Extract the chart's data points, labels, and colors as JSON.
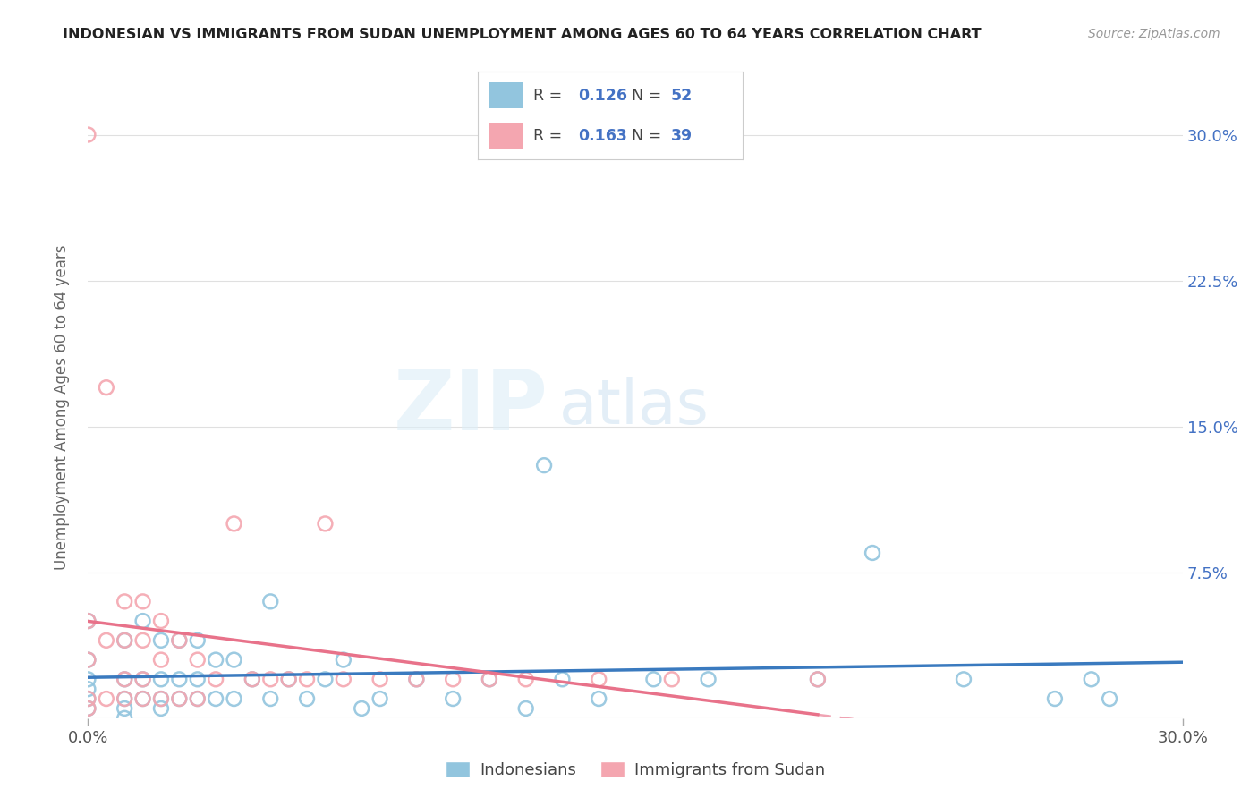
{
  "title": "INDONESIAN VS IMMIGRANTS FROM SUDAN UNEMPLOYMENT AMONG AGES 60 TO 64 YEARS CORRELATION CHART",
  "source": "Source: ZipAtlas.com",
  "ylabel": "Unemployment Among Ages 60 to 64 years",
  "xlim": [
    0.0,
    0.3
  ],
  "ylim": [
    0.0,
    0.32
  ],
  "yticks": [
    0.0,
    0.075,
    0.15,
    0.225,
    0.3
  ],
  "ytick_labels": [
    "",
    "7.5%",
    "15.0%",
    "22.5%",
    "30.0%"
  ],
  "xticks": [
    0.0,
    0.3
  ],
  "xtick_labels": [
    "0.0%",
    "30.0%"
  ],
  "blue_color": "#92c5de",
  "pink_color": "#f4a6b0",
  "blue_line_color": "#3a7abf",
  "pink_line_color": "#e8728a",
  "r_blue": 0.126,
  "n_blue": 52,
  "r_pink": 0.163,
  "n_pink": 39,
  "legend_label_blue": "Indonesians",
  "legend_label_pink": "Immigrants from Sudan",
  "watermark_zip": "ZIP",
  "watermark_atlas": "atlas",
  "background_color": "#ffffff",
  "grid_color": "#e0e0e0",
  "blue_scatter_x": [
    0.0,
    0.0,
    0.0,
    0.0,
    0.0,
    0.0,
    0.01,
    0.01,
    0.01,
    0.01,
    0.01,
    0.015,
    0.015,
    0.015,
    0.02,
    0.02,
    0.02,
    0.02,
    0.025,
    0.025,
    0.025,
    0.03,
    0.03,
    0.03,
    0.035,
    0.035,
    0.04,
    0.04,
    0.045,
    0.05,
    0.05,
    0.055,
    0.06,
    0.065,
    0.07,
    0.075,
    0.08,
    0.09,
    0.1,
    0.11,
    0.12,
    0.125,
    0.13,
    0.14,
    0.155,
    0.17,
    0.2,
    0.215,
    0.24,
    0.265,
    0.275,
    0.28
  ],
  "blue_scatter_y": [
    0.005,
    0.01,
    0.015,
    0.02,
    0.03,
    0.05,
    0.0,
    0.005,
    0.01,
    0.02,
    0.04,
    0.01,
    0.02,
    0.05,
    0.005,
    0.01,
    0.02,
    0.04,
    0.01,
    0.02,
    0.04,
    0.01,
    0.02,
    0.04,
    0.01,
    0.03,
    0.01,
    0.03,
    0.02,
    0.01,
    0.06,
    0.02,
    0.01,
    0.02,
    0.03,
    0.005,
    0.01,
    0.02,
    0.01,
    0.02,
    0.005,
    0.13,
    0.02,
    0.01,
    0.02,
    0.02,
    0.02,
    0.085,
    0.02,
    0.01,
    0.02,
    0.01
  ],
  "pink_scatter_x": [
    0.0,
    0.0,
    0.0,
    0.0,
    0.0,
    0.005,
    0.005,
    0.005,
    0.01,
    0.01,
    0.01,
    0.01,
    0.015,
    0.015,
    0.015,
    0.015,
    0.02,
    0.02,
    0.02,
    0.025,
    0.025,
    0.03,
    0.03,
    0.035,
    0.04,
    0.045,
    0.05,
    0.055,
    0.06,
    0.065,
    0.07,
    0.08,
    0.09,
    0.1,
    0.11,
    0.12,
    0.14,
    0.16,
    0.2
  ],
  "pink_scatter_y": [
    0.005,
    0.01,
    0.03,
    0.05,
    0.3,
    0.01,
    0.04,
    0.17,
    0.01,
    0.02,
    0.04,
    0.06,
    0.01,
    0.02,
    0.04,
    0.06,
    0.01,
    0.03,
    0.05,
    0.01,
    0.04,
    0.01,
    0.03,
    0.02,
    0.1,
    0.02,
    0.02,
    0.02,
    0.02,
    0.1,
    0.02,
    0.02,
    0.02,
    0.02,
    0.02,
    0.02,
    0.02,
    0.02,
    0.02
  ]
}
